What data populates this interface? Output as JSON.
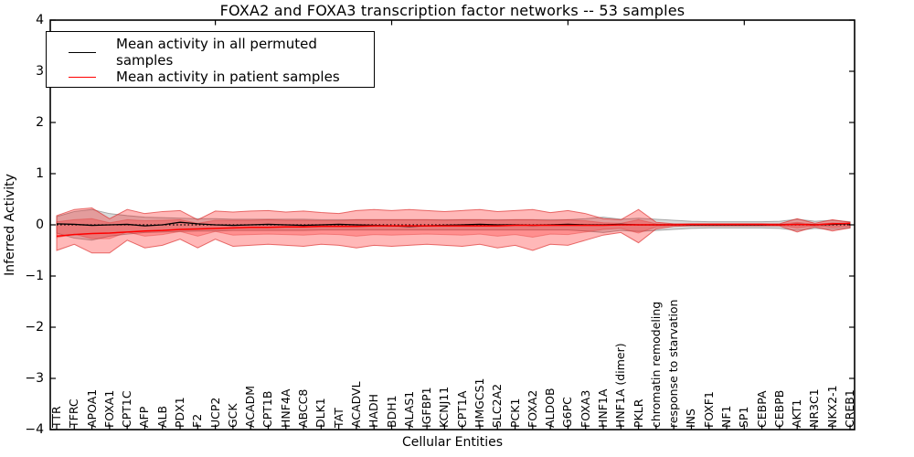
{
  "chart_data": {
    "type": "line",
    "title": "FOXA2 and FOXA3 transcription factor networks -- 53 samples",
    "xlabel": "Cellular Entities",
    "ylabel": "Inferred Activity",
    "ylim": [
      -4,
      4
    ],
    "y_ticks": [
      "4",
      "3",
      "2",
      "1",
      "0",
      "−1",
      "−2",
      "−3",
      "−4"
    ],
    "grid": false,
    "legend_position": "upper left",
    "categories": [
      "TTR",
      "TFRC",
      "APOA1",
      "FOXA1",
      "CPT1C",
      "AFP",
      "ALB",
      "PDX1",
      "F2",
      "UCP2",
      "GCK",
      "ACADM",
      "CPT1B",
      "HNF4A",
      "ABCC8",
      "DLK1",
      "TAT",
      "ACADVL",
      "HADH",
      "BDH1",
      "ALAS1",
      "IGFBP1",
      "KCNJ11",
      "CPT1A",
      "HMGCS1",
      "SLC2A2",
      "PCK1",
      "FOXA2",
      "ALDOB",
      "G6PC",
      "FOXA3",
      "HNF1A",
      "HNF1A (dimer)",
      "PKLR",
      "chromatin remodeling",
      "response to starvation",
      "INS",
      "FOXF1",
      "NF1",
      "SP1",
      "CEBPA",
      "CEBPB",
      "AKT1",
      "NR3C1",
      "NKX2-1",
      "CREB1"
    ],
    "series": [
      {
        "name": "Mean activity in all permuted samples",
        "color": "#000000",
        "values": [
          0.02,
          0.01,
          -0.01,
          0.0,
          0.01,
          -0.02,
          0.0,
          0.05,
          0.02,
          0.0,
          -0.01,
          0.0,
          0.01,
          0.0,
          -0.01,
          0.0,
          0.01,
          0.0,
          -0.01,
          -0.02,
          -0.03,
          -0.02,
          -0.01,
          0.0,
          0.01,
          0.0,
          0.0,
          -0.01,
          0.0,
          0.01,
          0.0,
          0.0,
          0.01,
          0.0,
          0.0,
          0.0,
          0.0,
          0.0,
          0.0,
          0.0,
          0.0,
          0.0,
          0.01,
          0.0,
          0.01,
          0.02
        ]
      },
      {
        "name": "Mean activity in patient samples",
        "color": "#ff0000",
        "values": [
          -0.22,
          -0.19,
          -0.17,
          -0.16,
          -0.14,
          -0.12,
          -0.11,
          -0.09,
          -0.08,
          -0.07,
          -0.06,
          -0.05,
          -0.05,
          -0.04,
          -0.04,
          -0.03,
          -0.03,
          -0.03,
          -0.02,
          -0.02,
          -0.02,
          -0.02,
          -0.02,
          -0.02,
          -0.02,
          -0.02,
          -0.01,
          -0.01,
          -0.01,
          -0.01,
          -0.01,
          -0.01,
          0.0,
          0.0,
          0.0,
          0.0,
          0.01,
          0.01,
          0.01,
          0.01,
          0.01,
          0.0,
          0.01,
          0.0,
          0.02,
          0.03
        ]
      }
    ],
    "bands": [
      {
        "name": "permuted-samples-std-band",
        "color": "#646464",
        "fill_opacity": 0.25,
        "upper": [
          0.16,
          0.26,
          0.3,
          0.22,
          0.18,
          0.15,
          0.14,
          0.13,
          0.12,
          0.12,
          0.11,
          0.11,
          0.11,
          0.11,
          0.11,
          0.1,
          0.1,
          0.1,
          0.1,
          0.1,
          0.1,
          0.1,
          0.1,
          0.1,
          0.1,
          0.1,
          0.1,
          0.1,
          0.1,
          0.1,
          0.12,
          0.15,
          0.11,
          0.13,
          0.11,
          0.09,
          0.07,
          0.06,
          0.06,
          0.06,
          0.06,
          0.07,
          0.11,
          0.07,
          0.09,
          0.06
        ],
        "lower": [
          -0.16,
          -0.26,
          -0.3,
          -0.22,
          -0.18,
          -0.15,
          -0.14,
          -0.13,
          -0.12,
          -0.12,
          -0.11,
          -0.11,
          -0.11,
          -0.11,
          -0.11,
          -0.1,
          -0.1,
          -0.1,
          -0.1,
          -0.1,
          -0.1,
          -0.1,
          -0.1,
          -0.1,
          -0.1,
          -0.1,
          -0.1,
          -0.1,
          -0.1,
          -0.1,
          -0.12,
          -0.15,
          -0.11,
          -0.13,
          -0.11,
          -0.09,
          -0.07,
          -0.06,
          -0.06,
          -0.06,
          -0.06,
          -0.07,
          -0.11,
          -0.07,
          -0.09,
          -0.06
        ]
      },
      {
        "name": "patient-samples-outer-band",
        "color": "#ff0000",
        "fill_opacity": 0.28,
        "upper": [
          0.18,
          0.3,
          0.33,
          0.12,
          0.3,
          0.22,
          0.26,
          0.28,
          0.1,
          0.27,
          0.25,
          0.27,
          0.28,
          0.25,
          0.27,
          0.24,
          0.22,
          0.28,
          0.3,
          0.28,
          0.3,
          0.28,
          0.26,
          0.28,
          0.3,
          0.26,
          0.28,
          0.3,
          0.24,
          0.28,
          0.22,
          0.12,
          0.1,
          0.3,
          0.05,
          0.02,
          0.02,
          0.02,
          0.02,
          0.02,
          0.02,
          0.02,
          0.12,
          0.03,
          0.1,
          0.05
        ],
        "lower": [
          -0.5,
          -0.38,
          -0.55,
          -0.55,
          -0.3,
          -0.45,
          -0.4,
          -0.28,
          -0.45,
          -0.28,
          -0.42,
          -0.4,
          -0.38,
          -0.4,
          -0.42,
          -0.38,
          -0.4,
          -0.45,
          -0.4,
          -0.42,
          -0.4,
          -0.38,
          -0.4,
          -0.42,
          -0.38,
          -0.45,
          -0.4,
          -0.5,
          -0.38,
          -0.4,
          -0.3,
          -0.2,
          -0.15,
          -0.35,
          -0.08,
          -0.03,
          -0.02,
          -0.02,
          -0.02,
          -0.02,
          -0.02,
          -0.02,
          -0.14,
          -0.04,
          -0.12,
          -0.06
        ]
      },
      {
        "name": "patient-samples-inner-band",
        "color": "#ff0000",
        "fill_opacity": 0.22,
        "upper": [
          0.06,
          0.1,
          0.12,
          0.04,
          0.1,
          0.08,
          0.09,
          0.1,
          0.03,
          0.09,
          0.09,
          0.09,
          0.1,
          0.09,
          0.09,
          0.08,
          0.08,
          0.1,
          0.1,
          0.1,
          0.1,
          0.1,
          0.09,
          0.1,
          0.1,
          0.09,
          0.1,
          0.1,
          0.08,
          0.1,
          0.08,
          0.04,
          0.03,
          0.1,
          0.02,
          0.01,
          0.01,
          0.01,
          0.01,
          0.01,
          0.01,
          0.01,
          0.05,
          0.01,
          0.04,
          0.02
        ],
        "lower": [
          -0.25,
          -0.18,
          -0.27,
          -0.27,
          -0.14,
          -0.22,
          -0.19,
          -0.13,
          -0.22,
          -0.13,
          -0.2,
          -0.19,
          -0.18,
          -0.19,
          -0.2,
          -0.18,
          -0.19,
          -0.22,
          -0.19,
          -0.2,
          -0.19,
          -0.18,
          -0.19,
          -0.2,
          -0.18,
          -0.22,
          -0.19,
          -0.24,
          -0.18,
          -0.19,
          -0.14,
          -0.09,
          -0.07,
          -0.16,
          -0.04,
          -0.01,
          -0.01,
          -0.01,
          -0.01,
          -0.01,
          -0.01,
          -0.01,
          -0.06,
          -0.02,
          -0.05,
          -0.03
        ]
      }
    ],
    "zero_line": {
      "style": "dotted",
      "color": "#000000",
      "value": 0
    },
    "axes": {
      "top_tick_indices": [
        9,
        19,
        29,
        39
      ]
    }
  }
}
